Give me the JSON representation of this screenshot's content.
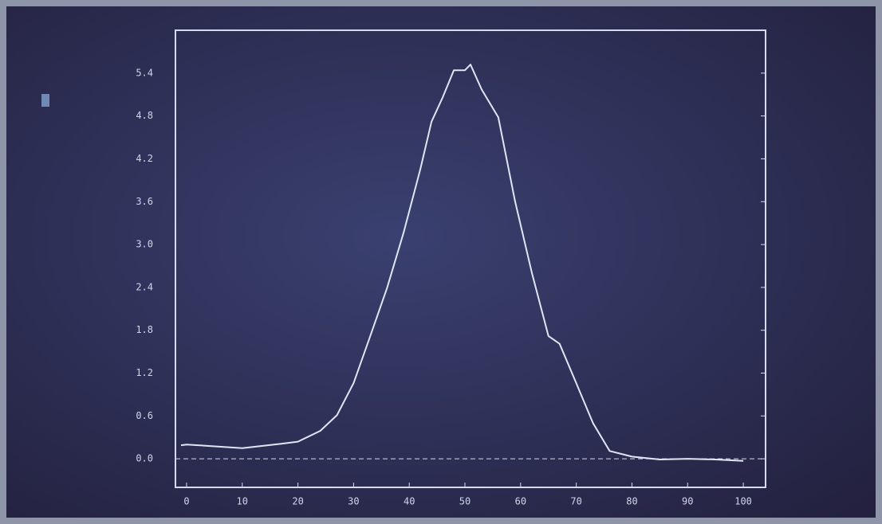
{
  "chart_data": {
    "type": "line",
    "x": [
      -1,
      0,
      10,
      17,
      20,
      24,
      27,
      30,
      33,
      36,
      39,
      42,
      44,
      46,
      48,
      50,
      51,
      53,
      56,
      59,
      62,
      65,
      67,
      70,
      73,
      76,
      80,
      85,
      90,
      95,
      100
    ],
    "values": [
      0.19,
      0.2,
      0.15,
      0.21,
      0.24,
      0.39,
      0.61,
      1.06,
      1.72,
      2.39,
      3.17,
      4.06,
      4.72,
      5.06,
      5.44,
      5.44,
      5.52,
      5.17,
      4.78,
      3.61,
      2.61,
      1.72,
      1.61,
      1.06,
      0.5,
      0.11,
      0.03,
      -0.01,
      0.0,
      -0.01,
      -0.03
    ],
    "color": "#dfe6f5",
    "xlim": [
      -2,
      104
    ],
    "xticks": [
      0,
      10,
      20,
      30,
      40,
      50,
      60,
      70,
      80,
      90,
      100
    ],
    "ylim": [
      -0.4,
      6.0
    ],
    "yticks": [
      {
        "value": 0,
        "label": "0.0"
      },
      0.6,
      1.2,
      1.8,
      2.4,
      {
        "value": 3,
        "label": "3.0"
      },
      3.6,
      4.2,
      4.8,
      5.4
    ]
  }
}
